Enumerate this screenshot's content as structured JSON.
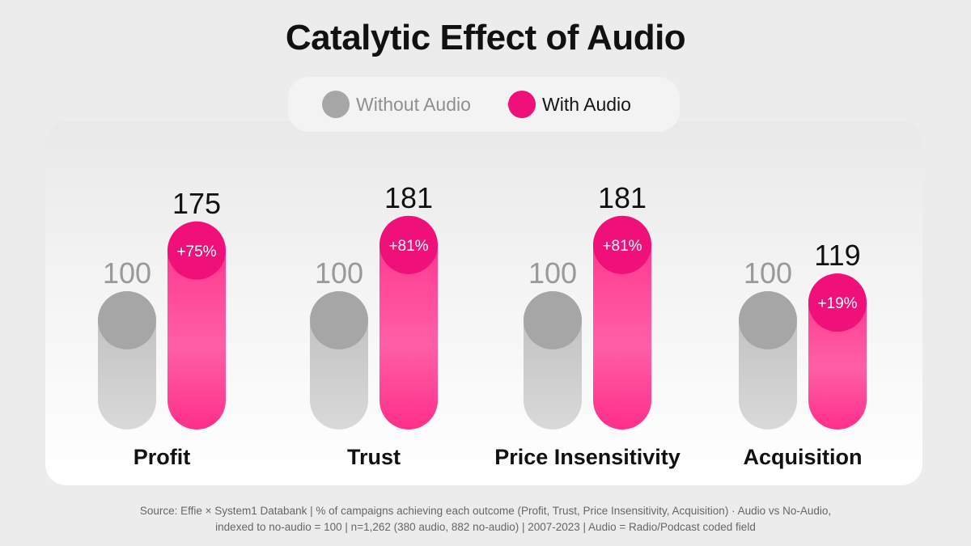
{
  "colors": {
    "without": "#bdbdbd",
    "without_cap": "#a6a6a6",
    "with": "#ff2f8a",
    "with_cap": "#f0107a",
    "with_light": "#ffd1e6"
  },
  "footer": {
    "line1": "Source: Effie × System1 Databank | % of campaigns achieving each outcome (Profit, Trust, Price Insensitivity, Acquisition) · Audio vs No-Audio,",
    "line2": "indexed to no-audio = 100 | n=1,262 (380 audio, 882 no-audio) | 2007-2023 | Audio = Radio/Podcast coded field"
  },
  "chart_data": {
    "type": "bar",
    "title": "Catalytic Effect of Audio",
    "categories": [
      "Profit",
      "Trust",
      "Price Insensitivity",
      "Acquisition"
    ],
    "series": [
      {
        "name": "Without Audio",
        "values": [
          100,
          100,
          100,
          100
        ],
        "labels": [
          "100",
          "100",
          "100",
          "100"
        ]
      },
      {
        "name": "With Audio",
        "values": [
          175,
          181,
          181,
          119
        ],
        "labels": [
          "175",
          "181",
          "181",
          "119"
        ],
        "change_labels": [
          "+75%",
          "+81%",
          "+81%",
          "+19%"
        ]
      }
    ],
    "ylim": [
      0,
      181
    ],
    "legend_position": "top-center",
    "grid": false
  }
}
